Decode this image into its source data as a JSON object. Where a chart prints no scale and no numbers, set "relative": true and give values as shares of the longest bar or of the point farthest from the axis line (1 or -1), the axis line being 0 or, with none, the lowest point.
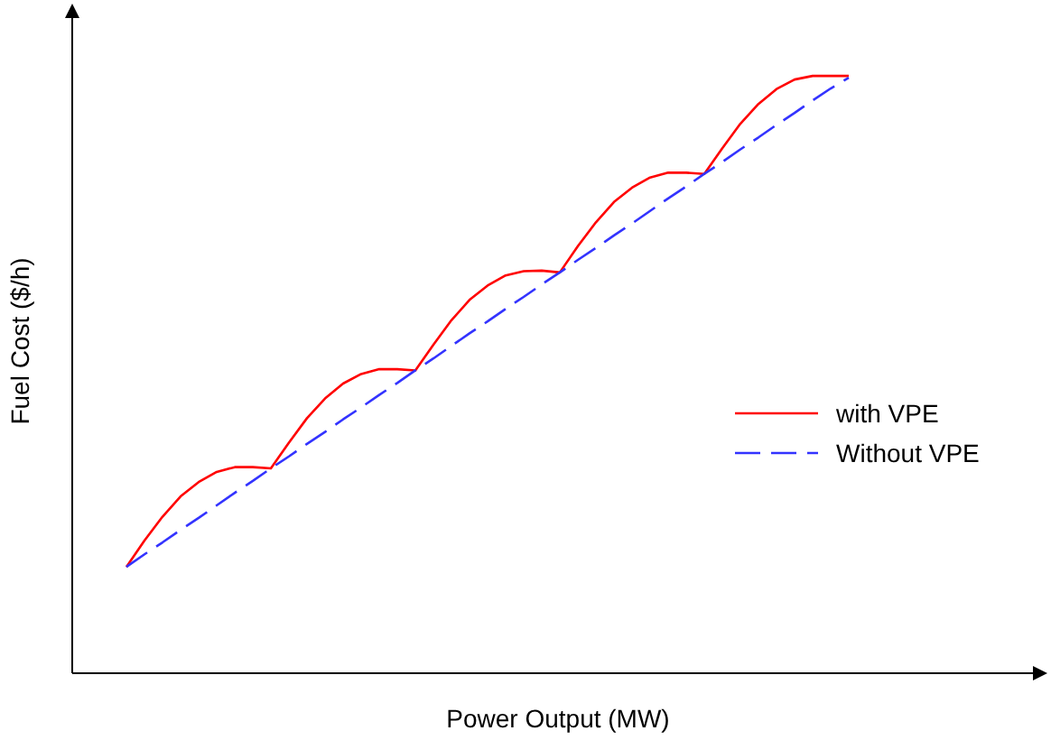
{
  "chart_data": {
    "type": "line",
    "relative": true,
    "xlabel": "Power Output (MW)",
    "ylabel": "Fuel Cost ($/h)",
    "categories": [
      null,
      null,
      null,
      null,
      null,
      null,
      null,
      null,
      null,
      null,
      null,
      null,
      null,
      null,
      null,
      null,
      null,
      null,
      null,
      null,
      null,
      null,
      null,
      null,
      null,
      null,
      null,
      null,
      null,
      null,
      null,
      null,
      null,
      null,
      null,
      null,
      null,
      null,
      null,
      null,
      null
    ],
    "legend": "right",
    "marker": "none",
    "grid": false,
    "series": [
      {
        "name": "with VPE",
        "color": "#ff0000",
        "line_style": "solid",
        "values": [
          0.178,
          0.222,
          0.262,
          0.296,
          0.32,
          0.337,
          0.345,
          0.345,
          0.343,
          0.386,
          0.427,
          0.46,
          0.485,
          0.501,
          0.509,
          0.509,
          0.507,
          0.55,
          0.591,
          0.625,
          0.649,
          0.666,
          0.673,
          0.674,
          0.671,
          0.715,
          0.755,
          0.789,
          0.813,
          0.83,
          0.838,
          0.838,
          0.836,
          0.879,
          0.92,
          0.953,
          0.978,
          0.994,
          1.0,
          1.0,
          1.0
        ]
      },
      {
        "name": "Without VPE",
        "color": "#3333ff",
        "line_style": "dashed",
        "values": [
          0.178,
          0.199,
          0.219,
          0.24,
          0.26,
          0.281,
          0.302,
          0.322,
          0.343,
          0.363,
          0.384,
          0.404,
          0.425,
          0.445,
          0.466,
          0.486,
          0.507,
          0.527,
          0.548,
          0.569,
          0.589,
          0.61,
          0.63,
          0.651,
          0.671,
          0.692,
          0.712,
          0.733,
          0.753,
          0.774,
          0.795,
          0.815,
          0.836,
          0.856,
          0.877,
          0.897,
          0.918,
          0.938,
          0.959,
          0.979,
          0.997
        ]
      }
    ]
  }
}
